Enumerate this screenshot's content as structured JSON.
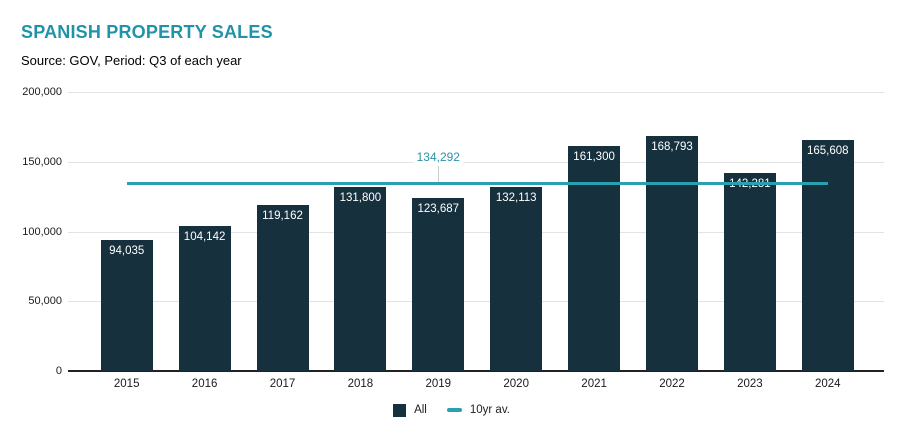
{
  "header": {
    "title": "SPANISH PROPERTY SALES",
    "subtitle": "Source: GOV, Period: Q3 of each year"
  },
  "chart_data": {
    "type": "bar",
    "title": "SPANISH PROPERTY SALES",
    "subtitle": "Source: GOV, Period: Q3 of each year",
    "categories": [
      "2015",
      "2016",
      "2017",
      "2018",
      "2019",
      "2020",
      "2021",
      "2022",
      "2023",
      "2024"
    ],
    "series": [
      {
        "name": "All",
        "type": "bar",
        "color": "#16303E",
        "values": [
          94035,
          104142,
          119162,
          131800,
          123687,
          132113,
          161300,
          168793,
          142281,
          165608
        ]
      },
      {
        "name": "10yr av.",
        "type": "line",
        "color": "#2AA1B2",
        "value": 134292,
        "annotation_label": "134,292",
        "annotation_at": "2019"
      }
    ],
    "xlabel": "",
    "ylabel": "",
    "ylim": [
      0,
      200000
    ],
    "yticks": [
      0,
      50000,
      100000,
      150000,
      200000
    ],
    "grid": true,
    "bar_labels": true,
    "legend_position": "bottom"
  },
  "legend": {
    "items": [
      {
        "label": "All",
        "color": "#16303E",
        "shape": "square"
      },
      {
        "label": "10yr av.",
        "color": "#2AA1B2",
        "shape": "line"
      }
    ]
  },
  "colors": {
    "title": "#2193A8",
    "bar": "#16303E",
    "average_line": "#2AA1B2",
    "annotation_text": "#2B93A8",
    "gridline": "#E3E3E3",
    "axis_line": "#212121",
    "axis_text": "#1A1A1A",
    "bar_label_text": "#FFFFFF",
    "background": "#FFFFFF"
  }
}
